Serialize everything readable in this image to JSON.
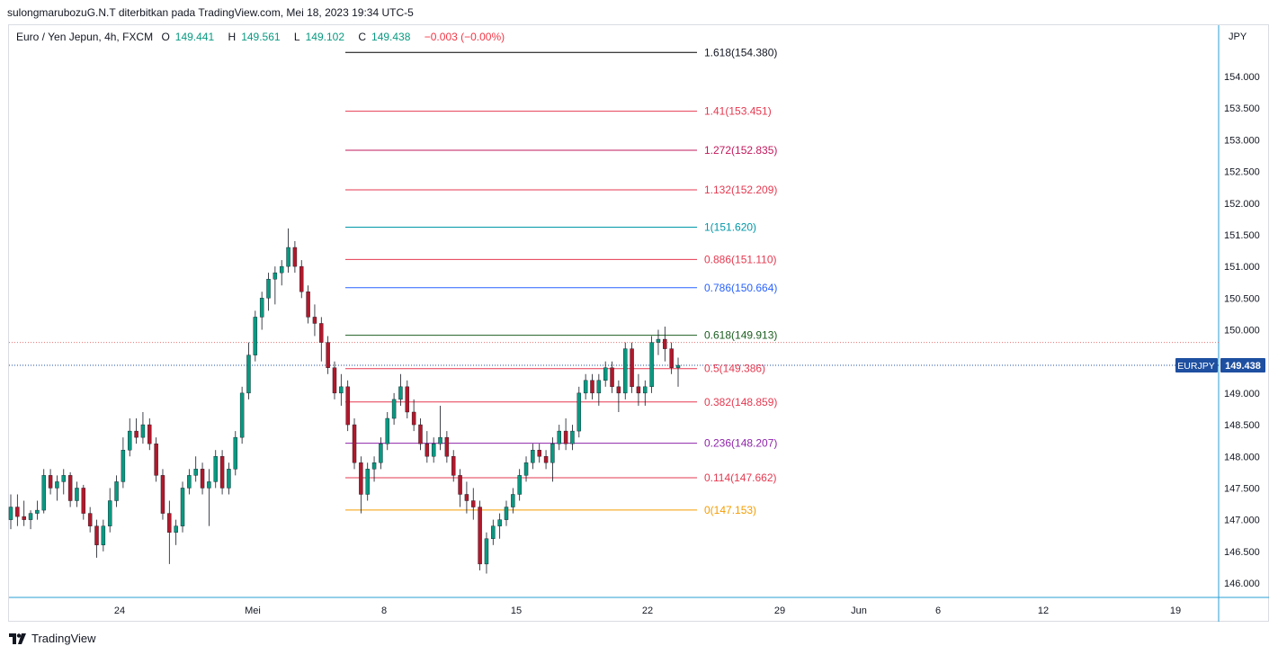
{
  "publisher_line": "sulongmarubozuG.N.T diterbitkan pada TradingView.com, Mei 18, 2023 19:34 UTC-5",
  "legend": {
    "symbol": "Euro / Yen Jepun, 4h, FXCM",
    "open_label": "O",
    "open": "149.441",
    "high_label": "H",
    "high": "149.561",
    "low_label": "L",
    "low": "149.102",
    "close_label": "C",
    "close": "149.438",
    "change": "−0.003 (−0.00%)"
  },
  "footer": {
    "brand": "TradingView"
  },
  "colors": {
    "up": "#089981",
    "down": "#b2182b",
    "axis_badge": "#1e4fa0"
  },
  "chart_data": {
    "type": "candlestick",
    "currency_label": "JPY",
    "y_range": [
      145.9,
      154.7
    ],
    "y_ticks": [
      "146.000",
      "146.500",
      "147.000",
      "147.500",
      "148.000",
      "148.500",
      "149.000",
      "149.500",
      "150.000",
      "150.500",
      "151.000",
      "151.500",
      "152.000",
      "152.500",
      "153.000",
      "153.500",
      "154.000"
    ],
    "x_tick_labels": [
      "24",
      "Mei",
      "8",
      "15",
      "22",
      "29",
      "Jun",
      "6",
      "12",
      "19"
    ],
    "price_badge": {
      "symbol": "EURJPY",
      "value": "149.438"
    },
    "fibonacci_levels": [
      {
        "label": "1.618(154.380)",
        "price": 154.38,
        "color": "#000000"
      },
      {
        "label": "1.41(153.451)",
        "price": 153.451,
        "color": "#e53950"
      },
      {
        "label": "1.272(152.835)",
        "price": 152.835,
        "color": "#c2185b"
      },
      {
        "label": "1.132(152.209)",
        "price": 152.209,
        "color": "#e53950"
      },
      {
        "label": "1(151.620)",
        "price": 151.62,
        "color": "#0097a7"
      },
      {
        "label": "0.886(151.110)",
        "price": 151.11,
        "color": "#e53950"
      },
      {
        "label": "0.786(150.664)",
        "price": 150.664,
        "color": "#2962ff"
      },
      {
        "label": "0.618(149.913)",
        "price": 149.913,
        "color": "#1b5e20"
      },
      {
        "label": "0.5(149.386)",
        "price": 149.386,
        "color": "#e53950"
      },
      {
        "label": "0.382(148.859)",
        "price": 148.859,
        "color": "#e53950"
      },
      {
        "label": "0.236(148.207)",
        "price": 148.207,
        "color": "#8e24aa"
      },
      {
        "label": "0.114(147.662)",
        "price": 147.662,
        "color": "#e53950"
      },
      {
        "label": "0(147.153)",
        "price": 147.153,
        "color": "#f59d00"
      }
    ],
    "prior_close_line": 149.8,
    "last_price": 149.438,
    "candles_ohlc": [
      [
        147.0,
        147.4,
        146.85,
        147.2
      ],
      [
        147.2,
        147.4,
        146.9,
        147.05
      ],
      [
        147.05,
        147.3,
        146.9,
        147.0
      ],
      [
        147.0,
        147.15,
        146.85,
        147.1
      ],
      [
        147.1,
        147.3,
        147.0,
        147.15
      ],
      [
        147.15,
        147.8,
        147.1,
        147.7
      ],
      [
        147.7,
        147.8,
        147.4,
        147.5
      ],
      [
        147.5,
        147.7,
        147.3,
        147.6
      ],
      [
        147.6,
        147.8,
        147.4,
        147.7
      ],
      [
        147.7,
        147.75,
        147.2,
        147.3
      ],
      [
        147.3,
        147.6,
        147.2,
        147.5
      ],
      [
        147.5,
        147.55,
        147.0,
        147.1
      ],
      [
        147.1,
        147.2,
        146.8,
        146.9
      ],
      [
        146.9,
        147.0,
        146.4,
        146.6
      ],
      [
        146.6,
        147.0,
        146.5,
        146.9
      ],
      [
        146.9,
        147.5,
        146.8,
        147.3
      ],
      [
        147.3,
        147.7,
        147.2,
        147.6
      ],
      [
        147.6,
        148.3,
        147.5,
        148.1
      ],
      [
        148.1,
        148.6,
        148.0,
        148.4
      ],
      [
        148.4,
        148.6,
        148.2,
        148.3
      ],
      [
        148.3,
        148.7,
        148.2,
        148.5
      ],
      [
        148.5,
        148.6,
        148.1,
        148.2
      ],
      [
        148.2,
        148.3,
        147.6,
        147.7
      ],
      [
        147.7,
        147.8,
        147.0,
        147.1
      ],
      [
        147.1,
        147.3,
        146.3,
        146.8
      ],
      [
        146.8,
        147.0,
        146.6,
        146.9
      ],
      [
        146.9,
        147.6,
        146.8,
        147.5
      ],
      [
        147.5,
        147.8,
        147.4,
        147.7
      ],
      [
        147.7,
        148.0,
        147.6,
        147.8
      ],
      [
        147.8,
        147.9,
        147.4,
        147.5
      ],
      [
        147.5,
        147.8,
        146.9,
        147.6
      ],
      [
        147.6,
        148.1,
        147.5,
        148.0
      ],
      [
        148.0,
        148.1,
        147.4,
        147.5
      ],
      [
        147.5,
        147.9,
        147.4,
        147.8
      ],
      [
        147.8,
        148.4,
        147.7,
        148.3
      ],
      [
        148.3,
        149.1,
        148.2,
        149.0
      ],
      [
        149.0,
        149.8,
        148.9,
        149.6
      ],
      [
        149.6,
        150.3,
        149.5,
        150.2
      ],
      [
        150.2,
        150.6,
        150.0,
        150.5
      ],
      [
        150.5,
        150.9,
        150.3,
        150.8
      ],
      [
        150.8,
        151.0,
        150.4,
        150.9
      ],
      [
        150.9,
        151.1,
        150.7,
        151.0
      ],
      [
        151.0,
        151.6,
        150.9,
        151.3
      ],
      [
        151.3,
        151.4,
        150.9,
        151.0
      ],
      [
        151.0,
        151.1,
        150.5,
        150.6
      ],
      [
        150.6,
        150.7,
        150.1,
        150.2
      ],
      [
        150.2,
        150.4,
        149.9,
        150.1
      ],
      [
        150.1,
        150.2,
        149.5,
        149.8
      ],
      [
        149.8,
        149.9,
        149.3,
        149.4
      ],
      [
        149.4,
        149.5,
        148.9,
        149.0
      ],
      [
        149.0,
        149.3,
        148.8,
        149.1
      ],
      [
        149.1,
        149.2,
        148.4,
        148.5
      ],
      [
        148.5,
        148.6,
        147.8,
        147.9
      ],
      [
        147.9,
        148.0,
        147.1,
        147.4
      ],
      [
        147.4,
        147.9,
        147.3,
        147.8
      ],
      [
        147.8,
        148.0,
        147.6,
        147.9
      ],
      [
        147.9,
        148.3,
        147.8,
        148.2
      ],
      [
        148.2,
        148.7,
        148.1,
        148.6
      ],
      [
        148.6,
        149.0,
        148.5,
        148.9
      ],
      [
        148.9,
        149.3,
        148.8,
        149.1
      ],
      [
        149.1,
        149.2,
        148.6,
        148.7
      ],
      [
        148.7,
        148.9,
        148.4,
        148.5
      ],
      [
        148.5,
        148.6,
        148.1,
        148.2
      ],
      [
        148.2,
        148.4,
        147.9,
        148.0
      ],
      [
        148.0,
        148.3,
        147.9,
        148.2
      ],
      [
        148.2,
        148.8,
        148.1,
        148.3
      ],
      [
        148.3,
        148.4,
        147.9,
        148.0
      ],
      [
        148.0,
        148.1,
        147.6,
        147.7
      ],
      [
        147.7,
        147.8,
        147.2,
        147.4
      ],
      [
        147.4,
        147.6,
        147.1,
        147.3
      ],
      [
        147.3,
        147.5,
        147.0,
        147.2
      ],
      [
        147.2,
        147.3,
        146.2,
        146.3
      ],
      [
        146.3,
        146.8,
        146.15,
        146.7
      ],
      [
        146.7,
        147.0,
        146.6,
        146.9
      ],
      [
        146.9,
        147.1,
        146.7,
        147.0
      ],
      [
        147.0,
        147.3,
        146.9,
        147.2
      ],
      [
        147.2,
        147.5,
        147.1,
        147.4
      ],
      [
        147.4,
        147.8,
        147.3,
        147.7
      ],
      [
        147.7,
        148.0,
        147.6,
        147.9
      ],
      [
        147.9,
        148.2,
        147.8,
        148.1
      ],
      [
        148.1,
        148.2,
        147.9,
        148.0
      ],
      [
        148.0,
        148.1,
        147.8,
        147.9
      ],
      [
        147.9,
        148.3,
        147.6,
        148.2
      ],
      [
        148.2,
        148.5,
        148.1,
        148.4
      ],
      [
        148.4,
        148.6,
        148.1,
        148.2
      ],
      [
        148.2,
        148.5,
        148.1,
        148.4
      ],
      [
        148.4,
        149.1,
        148.3,
        149.0
      ],
      [
        149.0,
        149.3,
        148.9,
        149.2
      ],
      [
        149.2,
        149.3,
        148.9,
        149.0
      ],
      [
        149.0,
        149.3,
        148.8,
        149.2
      ],
      [
        149.2,
        149.5,
        149.1,
        149.4
      ],
      [
        149.4,
        149.5,
        149.0,
        149.1
      ],
      [
        149.1,
        149.2,
        148.7,
        149.0
      ],
      [
        149.0,
        149.8,
        148.9,
        149.7
      ],
      [
        149.7,
        149.8,
        149.0,
        149.1
      ],
      [
        149.1,
        149.3,
        148.8,
        149.0
      ],
      [
        149.0,
        149.2,
        148.8,
        149.1
      ],
      [
        149.1,
        149.9,
        149.0,
        149.8
      ],
      [
        149.8,
        150.0,
        149.6,
        149.85
      ],
      [
        149.85,
        150.05,
        149.5,
        149.7
      ],
      [
        149.7,
        149.8,
        149.3,
        149.4
      ],
      [
        149.4,
        149.56,
        149.1,
        149.438
      ]
    ]
  }
}
